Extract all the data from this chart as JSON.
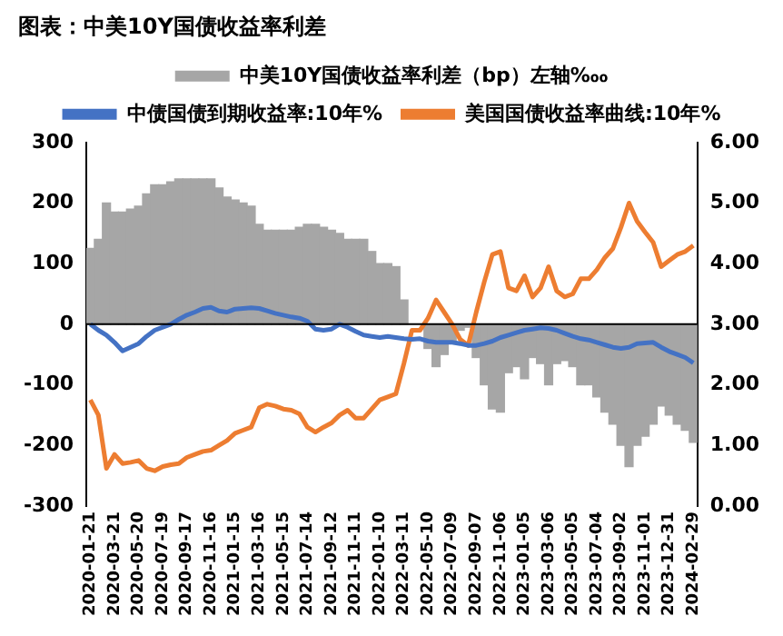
{
  "chart_data": {
    "type": "bar",
    "title": "图表：中美10Y国债收益率利差",
    "categories": [
      "2020-01-21",
      null,
      null,
      "2020-03-21",
      null,
      null,
      "2020-05-20",
      null,
      null,
      "2020-07-19",
      null,
      null,
      "2020-09-17",
      null,
      null,
      "2020-11-16",
      null,
      null,
      "2021-01-15",
      null,
      null,
      "2021-03-16",
      null,
      null,
      "2021-05-15",
      null,
      null,
      "2021-07-14",
      null,
      null,
      "2021-09-12",
      null,
      null,
      "2021-11-11",
      null,
      null,
      "2022-01-10",
      null,
      null,
      "2022-03-11",
      null,
      null,
      "2022-05-10",
      null,
      null,
      "2022-07-09",
      null,
      null,
      "2022-09-07",
      null,
      null,
      "2022-11-06",
      null,
      null,
      "2023-01-05",
      null,
      null,
      "2023-03-06",
      null,
      null,
      "2023-05-05",
      null,
      null,
      "2023-07-04",
      null,
      null,
      "2023-09-02",
      null,
      null,
      "2023-11-01",
      null,
      null,
      "2023-12-31",
      null,
      null,
      "2024-02-29"
    ],
    "series": [
      {
        "type": "bar",
        "name": "中美10Y国债收益率利差（bp）左轴‱",
        "color": "#a6a6a6",
        "values": [
          125,
          140,
          200,
          185,
          185,
          190,
          195,
          215,
          230,
          230,
          235,
          240,
          240,
          240,
          240,
          240,
          225,
          210,
          205,
          200,
          195,
          165,
          155,
          155,
          155,
          155,
          160,
          165,
          165,
          160,
          155,
          150,
          140,
          140,
          140,
          120,
          100,
          100,
          95,
          40,
          null,
          null,
          -40,
          -70,
          -50,
          -30,
          -10,
          -5,
          -55,
          -100,
          -140,
          -145,
          -80,
          -70,
          -90,
          -55,
          -65,
          -100,
          -65,
          -60,
          -70,
          -100,
          -100,
          -120,
          -145,
          -165,
          -200,
          -235,
          -200,
          -185,
          -165,
          -135,
          -150,
          -165,
          -175,
          -195
        ]
      },
      {
        "type": "line",
        "axis": "y2",
        "name": "中债国债到期收益率:10年%",
        "color": "#4472c4",
        "values": [
          3.0,
          2.9,
          2.82,
          2.7,
          2.56,
          2.62,
          2.68,
          2.8,
          2.9,
          2.95,
          3.0,
          3.08,
          3.15,
          3.2,
          3.26,
          3.28,
          3.22,
          3.2,
          3.25,
          3.26,
          3.27,
          3.26,
          3.22,
          3.18,
          3.15,
          3.12,
          3.1,
          3.05,
          2.92,
          2.9,
          2.92,
          3.0,
          2.95,
          2.88,
          2.82,
          2.8,
          2.78,
          2.8,
          2.78,
          2.76,
          2.75,
          2.76,
          2.72,
          2.7,
          2.7,
          2.7,
          2.68,
          2.65,
          2.65,
          2.68,
          2.72,
          2.78,
          2.82,
          2.86,
          2.9,
          2.92,
          2.94,
          2.93,
          2.9,
          2.85,
          2.8,
          2.76,
          2.74,
          2.7,
          2.66,
          2.62,
          2.6,
          2.62,
          2.68,
          2.69,
          2.7,
          2.62,
          2.55,
          2.5,
          2.45,
          2.36
        ]
      },
      {
        "type": "line",
        "axis": "y2",
        "name": "美国国债收益率曲线:10年%",
        "color": "#ed7d31",
        "values": [
          1.75,
          1.5,
          0.62,
          0.85,
          0.7,
          0.72,
          0.75,
          0.62,
          0.58,
          0.65,
          0.68,
          0.7,
          0.8,
          0.85,
          0.9,
          0.92,
          1.0,
          1.08,
          1.2,
          1.25,
          1.3,
          1.62,
          1.68,
          1.65,
          1.6,
          1.58,
          1.52,
          1.3,
          1.22,
          1.3,
          1.37,
          1.5,
          1.58,
          1.45,
          1.45,
          1.6,
          1.75,
          1.8,
          1.85,
          2.35,
          2.9,
          2.9,
          3.1,
          3.4,
          3.2,
          3.0,
          2.75,
          2.65,
          3.2,
          3.7,
          4.15,
          4.2,
          3.6,
          3.55,
          3.8,
          3.45,
          3.6,
          3.95,
          3.55,
          3.45,
          3.5,
          3.75,
          3.75,
          3.9,
          4.1,
          4.25,
          4.6,
          5.0,
          4.7,
          4.52,
          4.35,
          3.95,
          4.05,
          4.15,
          4.2,
          4.3
        ]
      }
    ],
    "ylim": [
      -300,
      300
    ],
    "yticks": [
      -300,
      -200,
      -100,
      0,
      100,
      200,
      300
    ],
    "y2lim": [
      0,
      6
    ],
    "y2ticks": [
      {
        "value": 0,
        "label": "0.00"
      },
      {
        "value": 1,
        "label": "1.00"
      },
      {
        "value": 2,
        "label": "2.00"
      },
      {
        "value": 3,
        "label": "3.00"
      },
      {
        "value": 4,
        "label": "4.00"
      },
      {
        "value": 5,
        "label": "5.00"
      },
      {
        "value": 6,
        "label": "6.00"
      }
    ],
    "ref_lines": [
      {
        "axis": "y",
        "value": 0,
        "color": "#000000"
      }
    ],
    "grid": false,
    "legend": "top"
  }
}
